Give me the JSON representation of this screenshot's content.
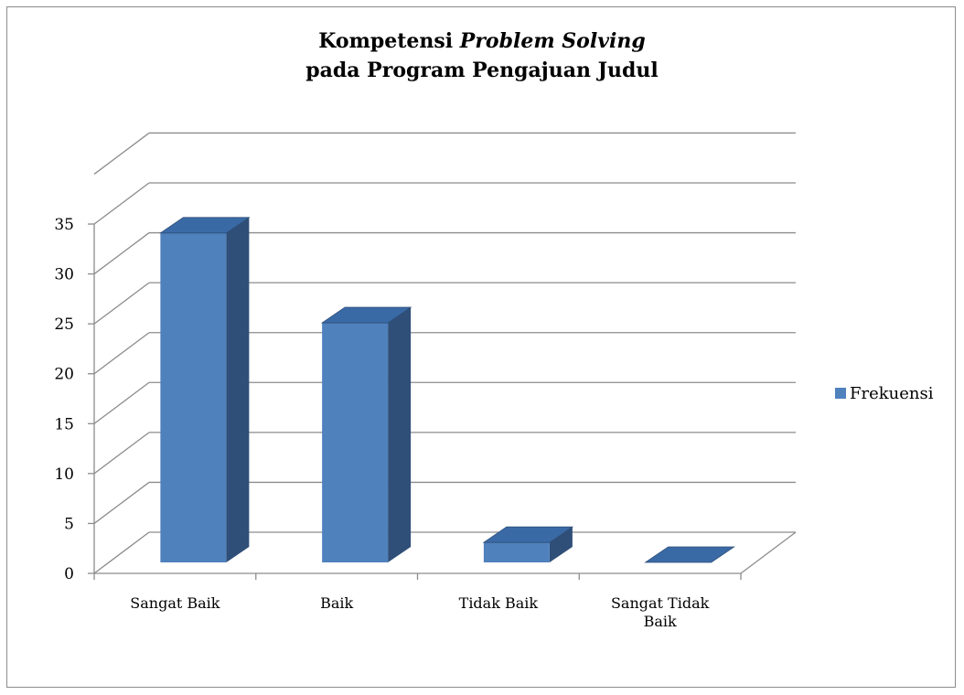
{
  "chart_data": {
    "type": "bar",
    "title_line1_plain": "Kompetensi ",
    "title_line1_italic": "Problem Solving",
    "title_line2": "pada Program Pengajuan Judul",
    "categories": [
      "Sangat Baik",
      "Baik",
      "Tidak Baik",
      "Sangat Tidak Baik"
    ],
    "category_lines": [
      [
        "Sangat Baik"
      ],
      [
        "Baik"
      ],
      [
        "Tidak Baik"
      ],
      [
        "Sangat Tidak",
        "Baik"
      ]
    ],
    "series": [
      {
        "name": "Frekuensi",
        "values": [
          33,
          24,
          2,
          0
        ],
        "color": "#4f81bd"
      }
    ],
    "y_ticks": [
      "0",
      "5",
      "10",
      "15",
      "20",
      "25",
      "30",
      "35"
    ],
    "ylim": [
      0,
      35
    ],
    "grid": true,
    "legend_position": "right",
    "style_3d": true
  }
}
